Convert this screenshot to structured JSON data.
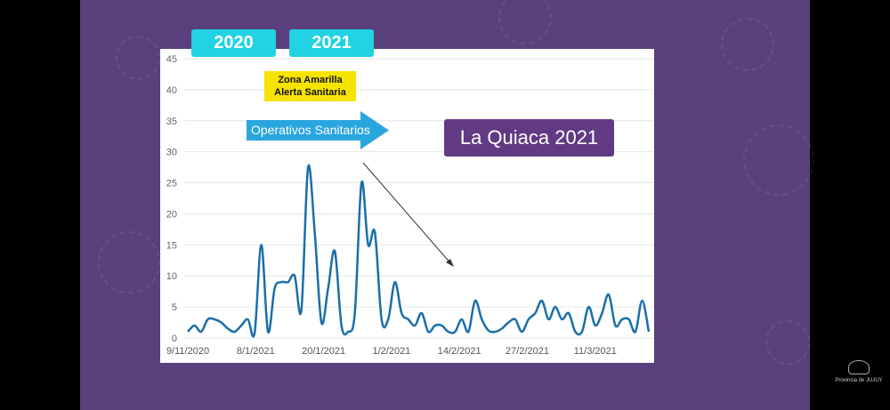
{
  "slide": {
    "year_tabs": [
      "2020",
      "2021"
    ],
    "zona_label": [
      "Zona Amarilla",
      "Alerta Sanitaria"
    ],
    "operativos_label": "Operativos Sanitarios",
    "title_badge": "La Quiaca 2021",
    "logo_text": "Provincia de JUJUY",
    "colors": {
      "background": "#5a3f7d",
      "year_tab": "#22d3e3",
      "zona": "#f6e300",
      "operativos_arrow": "#2aa6de",
      "title_badge": "#623a83",
      "line": "#1a6fa8"
    }
  },
  "chart_data": {
    "type": "line",
    "title": "",
    "xlabel": "",
    "ylabel": "",
    "ylim": [
      0,
      45
    ],
    "y_ticks": [
      0,
      5,
      10,
      15,
      20,
      25,
      30,
      35,
      40,
      45
    ],
    "x_tick_labels": [
      "9/11/2020",
      "8/1/2021",
      "20/1/2021",
      "1/2/2021",
      "14/2/2021",
      "27/2/2021",
      "11/3/2021"
    ],
    "grid": true,
    "smooth": true,
    "values": [
      1,
      2,
      1,
      3,
      3,
      2.5,
      1.5,
      1,
      2,
      3,
      0.8,
      15,
      1,
      8,
      9,
      9,
      10,
      4.5,
      27.5,
      17,
      2.5,
      8,
      14,
      2,
      1,
      4,
      25,
      15,
      17,
      3,
      3,
      9,
      4,
      3,
      2,
      4,
      1,
      2,
      2,
      1,
      1,
      3,
      1,
      6,
      3,
      1.2,
      1,
      1.5,
      2.5,
      3,
      1,
      3,
      4,
      6,
      3,
      5,
      3,
      4,
      1,
      1,
      5,
      2,
      4,
      7,
      2,
      3,
      3,
      1,
      6,
      1
    ]
  }
}
